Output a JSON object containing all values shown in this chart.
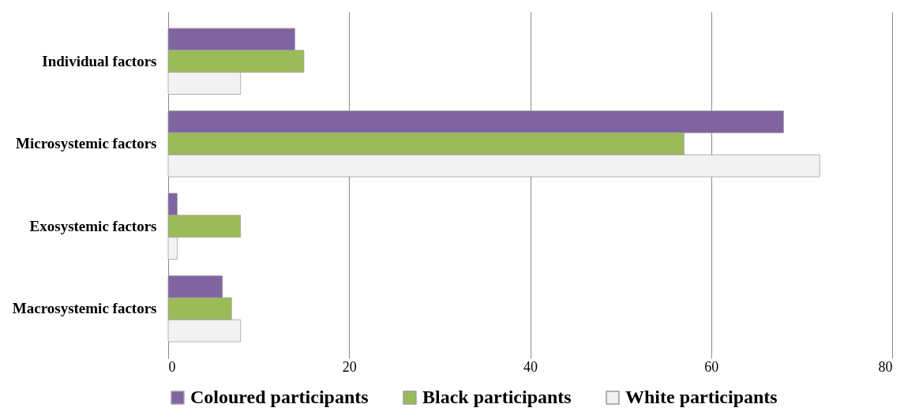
{
  "chart_data": {
    "type": "bar",
    "orientation": "horizontal",
    "categories": [
      "Individual factors",
      "Microsystemic factors",
      "Exosystemic factors",
      "Macrosystemic factors"
    ],
    "series": [
      {
        "name": "Coloured participants",
        "color": "#8064a2",
        "values": [
          14,
          68,
          1,
          6
        ]
      },
      {
        "name": "Black participants",
        "color": "#9bbb59",
        "values": [
          15,
          57,
          8,
          7
        ]
      },
      {
        "name": "White participants",
        "color": "#f2f2f2",
        "values": [
          8,
          72,
          1,
          8
        ]
      }
    ],
    "xlim": [
      0,
      80
    ],
    "xticks": [
      0,
      20,
      40,
      60,
      80
    ],
    "grid": "x",
    "legend": "bottom"
  }
}
